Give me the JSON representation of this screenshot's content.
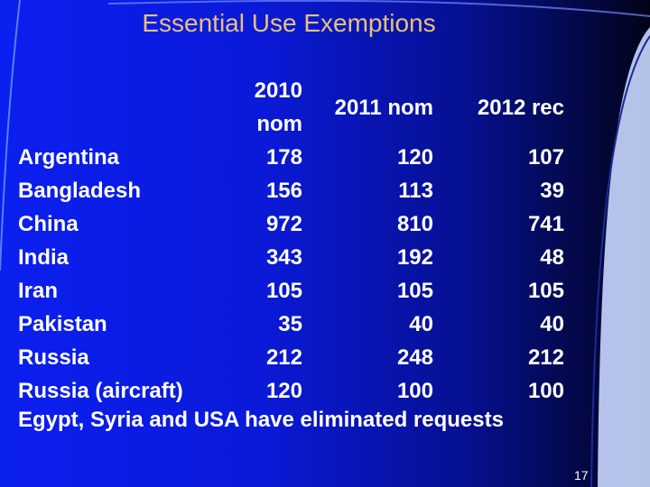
{
  "slide": {
    "title": "Essential Use Exemptions",
    "columns": [
      "2010 nom",
      "2011 nom",
      "2012 rec"
    ],
    "rows": [
      {
        "country": "Argentina",
        "y2010": "178",
        "y2011": "120",
        "y2012": "107"
      },
      {
        "country": "Bangladesh",
        "y2010": "156",
        "y2011": "113",
        "y2012": "39"
      },
      {
        "country": "China",
        "y2010": "972",
        "y2011": "810",
        "y2012": "741"
      },
      {
        "country": "India",
        "y2010": "343",
        "y2011": "192",
        "y2012": "48"
      },
      {
        "country": "Iran",
        "y2010": "105",
        "y2011": "105",
        "y2012": "105"
      },
      {
        "country": "Pakistan",
        "y2010": "35",
        "y2011": "40",
        "y2012": "40"
      },
      {
        "country": "Russia",
        "y2010": "212",
        "y2011": "248",
        "y2012": "212"
      },
      {
        "country": "Russia (aircraft)",
        "y2010": "120",
        "y2011": "100",
        "y2012": "100"
      }
    ],
    "note": "Egypt, Syria and USA have eliminated requests",
    "slide_number": "17"
  },
  "colors": {
    "title": "#e8c07a",
    "text": "#ffffff",
    "background_left": "#0b1ff0",
    "background_right": "#010318"
  }
}
